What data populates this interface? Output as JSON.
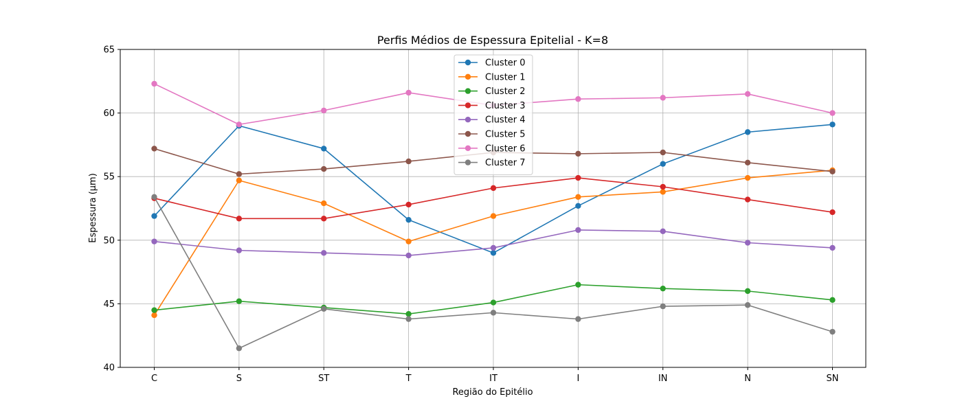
{
  "chart_data": {
    "type": "line",
    "title": "Perfis Médios de Espessura Epitelial - K=8",
    "xlabel": "Região do Epitélio",
    "ylabel": "Espessura (µm)",
    "categories": [
      "C",
      "S",
      "ST",
      "T",
      "IT",
      "I",
      "IN",
      "N",
      "SN"
    ],
    "ylim": [
      40,
      65
    ],
    "yticks": [
      40,
      45,
      50,
      55,
      60,
      65
    ],
    "grid": true,
    "legend_position": "top-center",
    "series": [
      {
        "name": "Cluster 0",
        "color": "#1f77b4",
        "values": [
          51.9,
          59.0,
          57.2,
          51.6,
          49.0,
          52.7,
          56.0,
          58.5,
          59.1
        ]
      },
      {
        "name": "Cluster 1",
        "color": "#ff7f0e",
        "values": [
          44.1,
          54.7,
          52.9,
          49.9,
          51.9,
          53.4,
          53.8,
          54.9,
          55.5
        ]
      },
      {
        "name": "Cluster 2",
        "color": "#2ca02c",
        "values": [
          44.5,
          45.2,
          44.7,
          44.2,
          45.1,
          46.5,
          46.2,
          46.0,
          45.3
        ]
      },
      {
        "name": "Cluster 3",
        "color": "#d62728",
        "values": [
          53.3,
          51.7,
          51.7,
          52.8,
          54.1,
          54.9,
          54.2,
          53.2,
          52.2
        ]
      },
      {
        "name": "Cluster 4",
        "color": "#9467bd",
        "values": [
          49.9,
          49.2,
          49.0,
          48.8,
          49.4,
          50.8,
          50.7,
          49.8,
          49.4
        ]
      },
      {
        "name": "Cluster 5",
        "color": "#8c564b",
        "values": [
          57.2,
          55.2,
          55.6,
          56.2,
          56.9,
          56.8,
          56.9,
          56.1,
          55.4
        ]
      },
      {
        "name": "Cluster 6",
        "color": "#e377c2",
        "values": [
          62.3,
          59.1,
          60.2,
          61.6,
          60.6,
          61.1,
          61.2,
          61.5,
          60.0
        ]
      },
      {
        "name": "Cluster 7",
        "color": "#7f7f7f",
        "values": [
          53.4,
          41.5,
          44.6,
          43.8,
          44.3,
          43.8,
          44.8,
          44.9,
          42.8
        ]
      }
    ]
  }
}
